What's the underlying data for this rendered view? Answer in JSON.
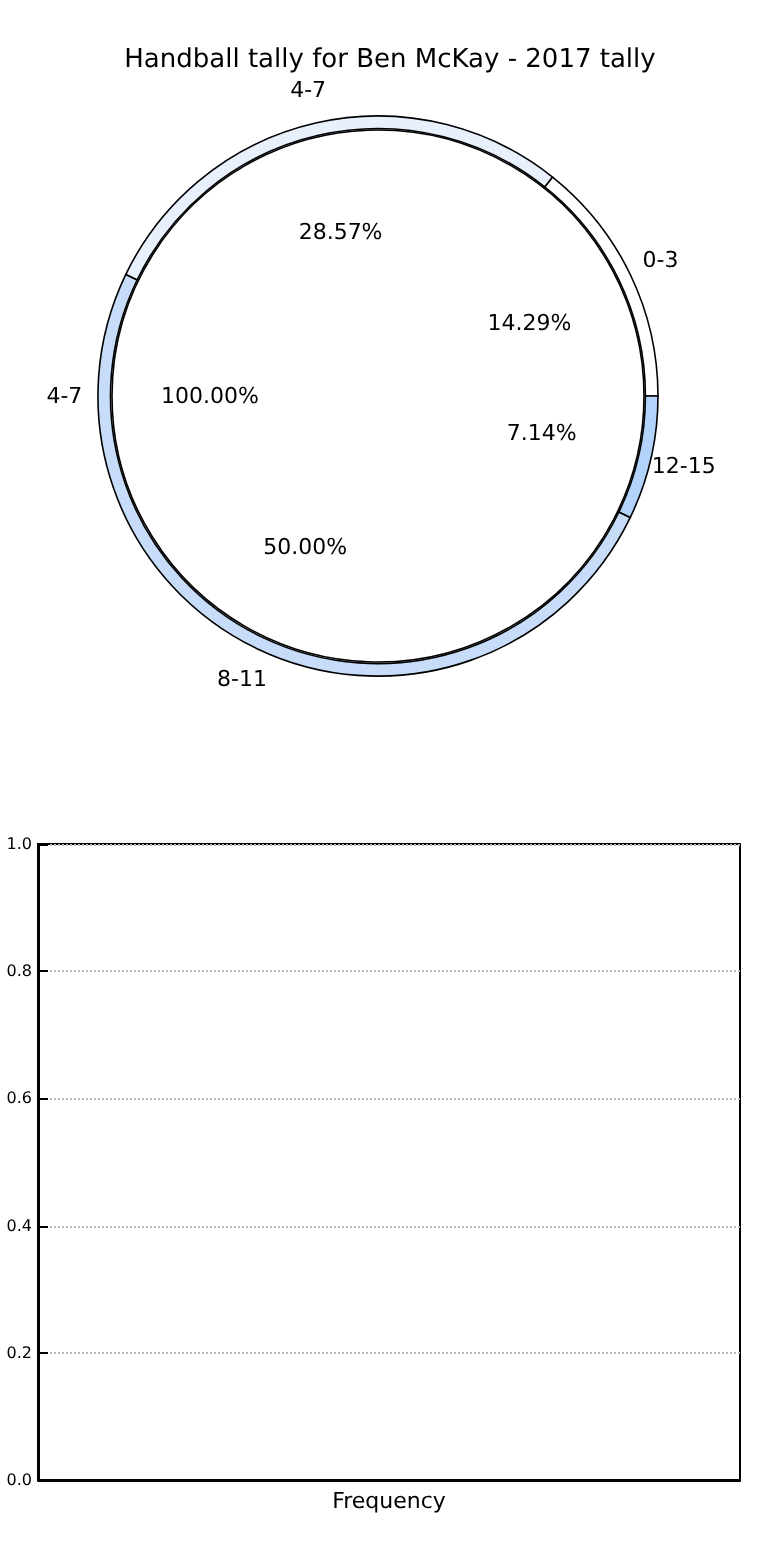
{
  "chart_data": [
    {
      "type": "donut",
      "title": "Handball tally for Ben McKay - 2017 tally",
      "categories": [
        "0-3",
        "4-7",
        "8-11",
        "12-15"
      ],
      "values": [
        14.29,
        28.57,
        50.0,
        7.14
      ],
      "colors": [
        "#ffffff",
        "#e8f0fe",
        "#c6dcf8",
        "#b3d4fa"
      ],
      "value_labels": [
        "14.29%",
        "28.57%",
        "50.00%",
        "7.14%"
      ]
    },
    {
      "type": "pie",
      "categories": [
        "4-7"
      ],
      "values": [
        100
      ],
      "colors": [
        "#ffffff"
      ],
      "value_labels": [
        "100.00%"
      ]
    },
    {
      "type": "bar",
      "categories": [
        "Frequency"
      ],
      "values": [
        null
      ],
      "ylim": [
        0,
        1
      ],
      "yticks": [
        {
          "value": 0,
          "label": "0.0"
        },
        {
          "value": 0.2,
          "label": "0.2"
        },
        {
          "value": 0.4,
          "label": "0.4"
        },
        {
          "value": 0.6,
          "label": "0.6"
        },
        {
          "value": 0.8,
          "label": "0.8"
        },
        {
          "value": 1,
          "label": "1.0"
        }
      ],
      "grid": "y"
    }
  ]
}
